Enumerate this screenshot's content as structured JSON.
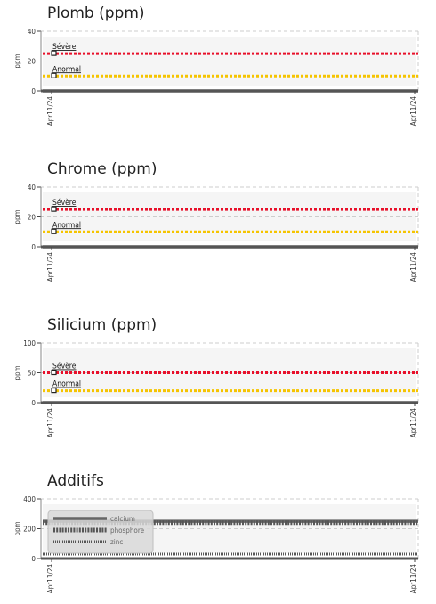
{
  "charts": [
    {
      "title": "Plomb (ppm)",
      "chart_data": {
        "type": "line",
        "ylabel": "ppm",
        "ylim": [
          0,
          40
        ],
        "yticks": [
          0,
          20,
          40
        ],
        "xticks": [
          "Apr11/24",
          "Apr11/24"
        ],
        "grid": true,
        "thresholds": [
          {
            "name": "Sévère",
            "value": 25,
            "color": "#e8102a"
          },
          {
            "name": "Anormal",
            "value": 10,
            "color": "#f5c400"
          }
        ],
        "series": [
          {
            "values": [
              0,
              0
            ]
          }
        ]
      }
    },
    {
      "title": "Chrome (ppm)",
      "chart_data": {
        "type": "line",
        "ylabel": "ppm",
        "ylim": [
          0,
          40
        ],
        "yticks": [
          0,
          20,
          40
        ],
        "xticks": [
          "Apr11/24",
          "Apr11/24"
        ],
        "grid": true,
        "thresholds": [
          {
            "name": "Sévère",
            "value": 25,
            "color": "#e8102a"
          },
          {
            "name": "Anormal",
            "value": 10,
            "color": "#f5c400"
          }
        ],
        "series": [
          {
            "values": [
              0,
              0
            ]
          }
        ]
      }
    },
    {
      "title": "Silicium (ppm)",
      "chart_data": {
        "type": "line",
        "ylabel": "ppm",
        "ylim": [
          0,
          100
        ],
        "yticks": [
          0,
          50,
          100
        ],
        "xticks": [
          "Apr11/24",
          "Apr11/24"
        ],
        "grid": true,
        "thresholds": [
          {
            "name": "Sévère",
            "value": 50,
            "color": "#e8102a"
          },
          {
            "name": "Anormal",
            "value": 20,
            "color": "#f5c400"
          }
        ],
        "series": [
          {
            "values": [
              0,
              0
            ]
          }
        ]
      }
    },
    {
      "title": "Additifs",
      "chart_data": {
        "type": "line",
        "ylabel": "ppm",
        "ylim": [
          0,
          400
        ],
        "yticks": [
          0,
          200,
          400
        ],
        "xticks": [
          "Apr11/24",
          "Apr11/24"
        ],
        "grid": true,
        "legend": "top-left",
        "series": [
          {
            "name": "calcium",
            "values": [
              250,
              250
            ],
            "color": "#666666",
            "style": "solid"
          },
          {
            "name": "phosphore",
            "values": [
              240,
              240
            ],
            "color": "#555555",
            "style": "dashed"
          },
          {
            "name": "zinc",
            "values": [
              30,
              30
            ],
            "color": "#555555",
            "style": "dotted"
          }
        ]
      }
    }
  ]
}
